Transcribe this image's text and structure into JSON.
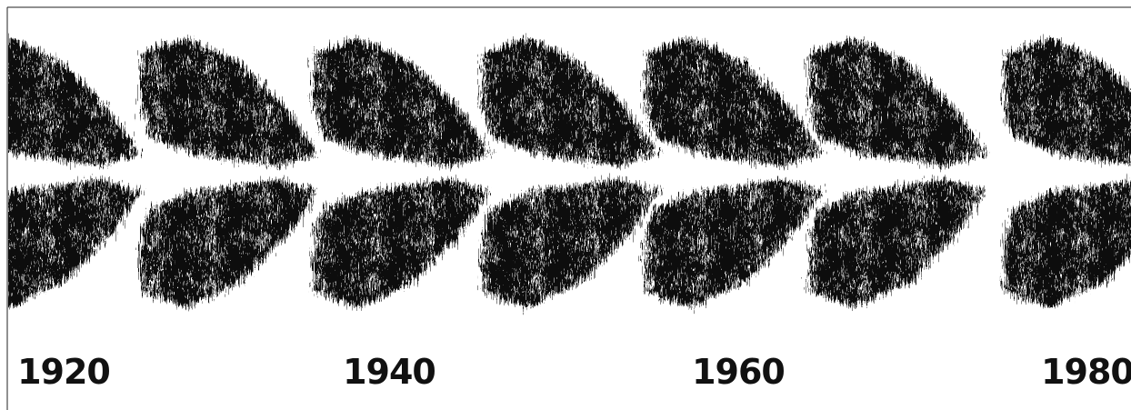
{
  "labels": [
    "1920",
    "1940",
    "1960",
    "1980"
  ]
}
